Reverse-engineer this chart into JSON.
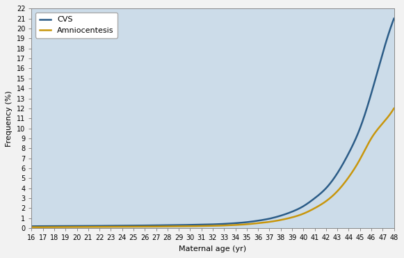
{
  "xlabel": "Maternal age (yr)",
  "ylabel": "Frequency (%)",
  "xlim": [
    16,
    48
  ],
  "ylim": [
    0,
    22
  ],
  "yticks": [
    0,
    1,
    2,
    3,
    4,
    5,
    6,
    7,
    8,
    9,
    10,
    11,
    12,
    13,
    14,
    15,
    16,
    17,
    18,
    19,
    20,
    21,
    22
  ],
  "xticks": [
    16,
    17,
    18,
    19,
    20,
    21,
    22,
    23,
    24,
    25,
    26,
    27,
    28,
    29,
    30,
    31,
    32,
    33,
    34,
    35,
    36,
    37,
    38,
    39,
    40,
    41,
    42,
    43,
    44,
    45,
    46,
    47,
    48
  ],
  "background_color": "#ccdce9",
  "fig_color": "#f0f0f0",
  "cvs_color": "#2b5c87",
  "amnio_color": "#c8960c",
  "cvs_label": "CVS",
  "amnio_label": "Amniocentesis",
  "cvs_linewidth": 1.8,
  "amnio_linewidth": 1.8,
  "spine_color": "#888888",
  "tick_fontsize": 7,
  "label_fontsize": 8,
  "legend_fontsize": 8,
  "cvs_ages": [
    16,
    17,
    18,
    19,
    20,
    21,
    22,
    23,
    24,
    25,
    26,
    27,
    28,
    29,
    30,
    31,
    32,
    33,
    34,
    35,
    36,
    37,
    38,
    39,
    40,
    41,
    42,
    43,
    44,
    45,
    46,
    47,
    48
  ],
  "cvs_values": [
    0.19,
    0.2,
    0.2,
    0.21,
    0.22,
    0.22,
    0.23,
    0.24,
    0.25,
    0.26,
    0.27,
    0.28,
    0.3,
    0.31,
    0.33,
    0.35,
    0.38,
    0.43,
    0.5,
    0.6,
    0.75,
    0.95,
    1.25,
    1.65,
    2.2,
    3.0,
    4.0,
    5.5,
    7.5,
    10.0,
    13.5,
    17.5,
    21.0
  ],
  "amnio_ages": [
    16,
    17,
    18,
    19,
    20,
    21,
    22,
    23,
    24,
    25,
    26,
    27,
    28,
    29,
    30,
    31,
    32,
    33,
    34,
    35,
    36,
    37,
    38,
    39,
    40,
    41,
    42,
    43,
    44,
    45,
    46,
    47,
    48
  ],
  "amnio_values": [
    0.1,
    0.1,
    0.11,
    0.11,
    0.12,
    0.12,
    0.13,
    0.13,
    0.14,
    0.14,
    0.15,
    0.16,
    0.17,
    0.18,
    0.19,
    0.21,
    0.23,
    0.27,
    0.32,
    0.39,
    0.5,
    0.63,
    0.82,
    1.08,
    1.45,
    2.0,
    2.7,
    3.7,
    5.1,
    6.9,
    9.0,
    10.5,
    12.0
  ]
}
